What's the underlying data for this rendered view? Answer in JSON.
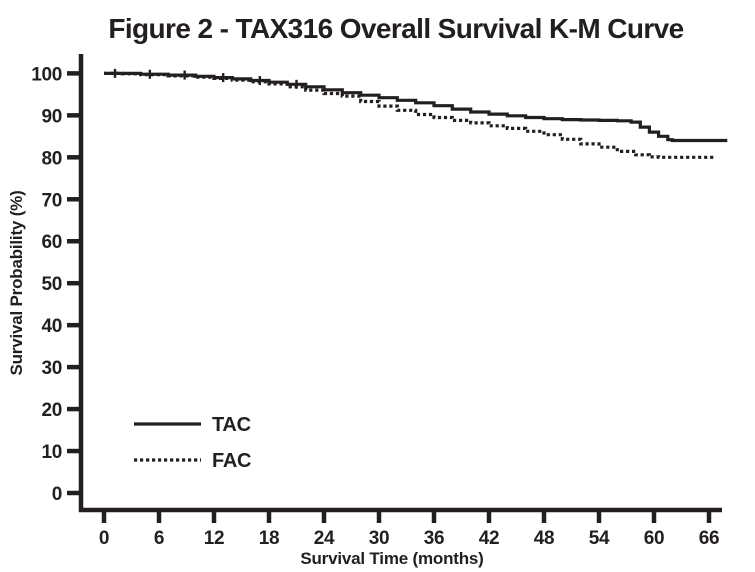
{
  "chart_data": {
    "type": "line",
    "subtype": "kaplan-meier-step",
    "title": "Figure 2 - TAX316 Overall Survival K-M Curve",
    "xlabel": "Survival Time (months)",
    "ylabel": "Survival Probability (%)",
    "xlim": [
      0,
      69
    ],
    "ylim": [
      0,
      100
    ],
    "x_ticks": [
      0,
      6,
      12,
      18,
      24,
      30,
      36,
      42,
      48,
      54,
      60,
      66
    ],
    "y_ticks": [
      0,
      10,
      20,
      30,
      40,
      50,
      60,
      70,
      80,
      90,
      100
    ],
    "grid": false,
    "legend_position": "inside-lower-left",
    "axis_color": "#231f20",
    "line_color": "#231f20",
    "series": [
      {
        "name": "TAC",
        "style": "solid",
        "points": [
          [
            0,
            100
          ],
          [
            2,
            100
          ],
          [
            4,
            99.8
          ],
          [
            7,
            99.6
          ],
          [
            10,
            99.3
          ],
          [
            12,
            99.0
          ],
          [
            14,
            98.7
          ],
          [
            16,
            98.3
          ],
          [
            18,
            97.9
          ],
          [
            20,
            97.4
          ],
          [
            22,
            96.8
          ],
          [
            24,
            96.1
          ],
          [
            26,
            95.4
          ],
          [
            28,
            94.8
          ],
          [
            30,
            94.2
          ],
          [
            32,
            93.6
          ],
          [
            34,
            93.0
          ],
          [
            36,
            92.3
          ],
          [
            38,
            91.5
          ],
          [
            40,
            90.8
          ],
          [
            42,
            90.3
          ],
          [
            44,
            89.9
          ],
          [
            46,
            89.5
          ],
          [
            48,
            89.2
          ],
          [
            50,
            89.0
          ],
          [
            52,
            88.9
          ],
          [
            54,
            88.8
          ],
          [
            56,
            88.7
          ],
          [
            57.5,
            88.4
          ],
          [
            58.5,
            87.2
          ],
          [
            59.5,
            86.0
          ],
          [
            60.5,
            85.0
          ],
          [
            61.5,
            84.2
          ],
          [
            62,
            84.0
          ],
          [
            68,
            84.0
          ]
        ]
      },
      {
        "name": "FAC",
        "style": "dotted",
        "points": [
          [
            0,
            100
          ],
          [
            2,
            99.9
          ],
          [
            4,
            99.7
          ],
          [
            7,
            99.4
          ],
          [
            10,
            99.1
          ],
          [
            12,
            98.8
          ],
          [
            14,
            98.4
          ],
          [
            16,
            98.0
          ],
          [
            18,
            97.5
          ],
          [
            20,
            96.8
          ],
          [
            22,
            96.0
          ],
          [
            24,
            95.2
          ],
          [
            26,
            94.6
          ],
          [
            28,
            93.3
          ],
          [
            30,
            92.2
          ],
          [
            32,
            91.2
          ],
          [
            34,
            90.2
          ],
          [
            36,
            89.5
          ],
          [
            38,
            88.8
          ],
          [
            40,
            88.2
          ],
          [
            42,
            87.5
          ],
          [
            44,
            86.9
          ],
          [
            46,
            86.2
          ],
          [
            48,
            85.4
          ],
          [
            50,
            84.3
          ],
          [
            52,
            83.2
          ],
          [
            54,
            82.4
          ],
          [
            56,
            81.4
          ],
          [
            58,
            80.6
          ],
          [
            59.5,
            80.1
          ],
          [
            60.5,
            80.0
          ],
          [
            66.5,
            80.0
          ]
        ]
      }
    ],
    "censor_mark_months": [
      1.2,
      5,
      8.8,
      13,
      17,
      21
    ]
  }
}
